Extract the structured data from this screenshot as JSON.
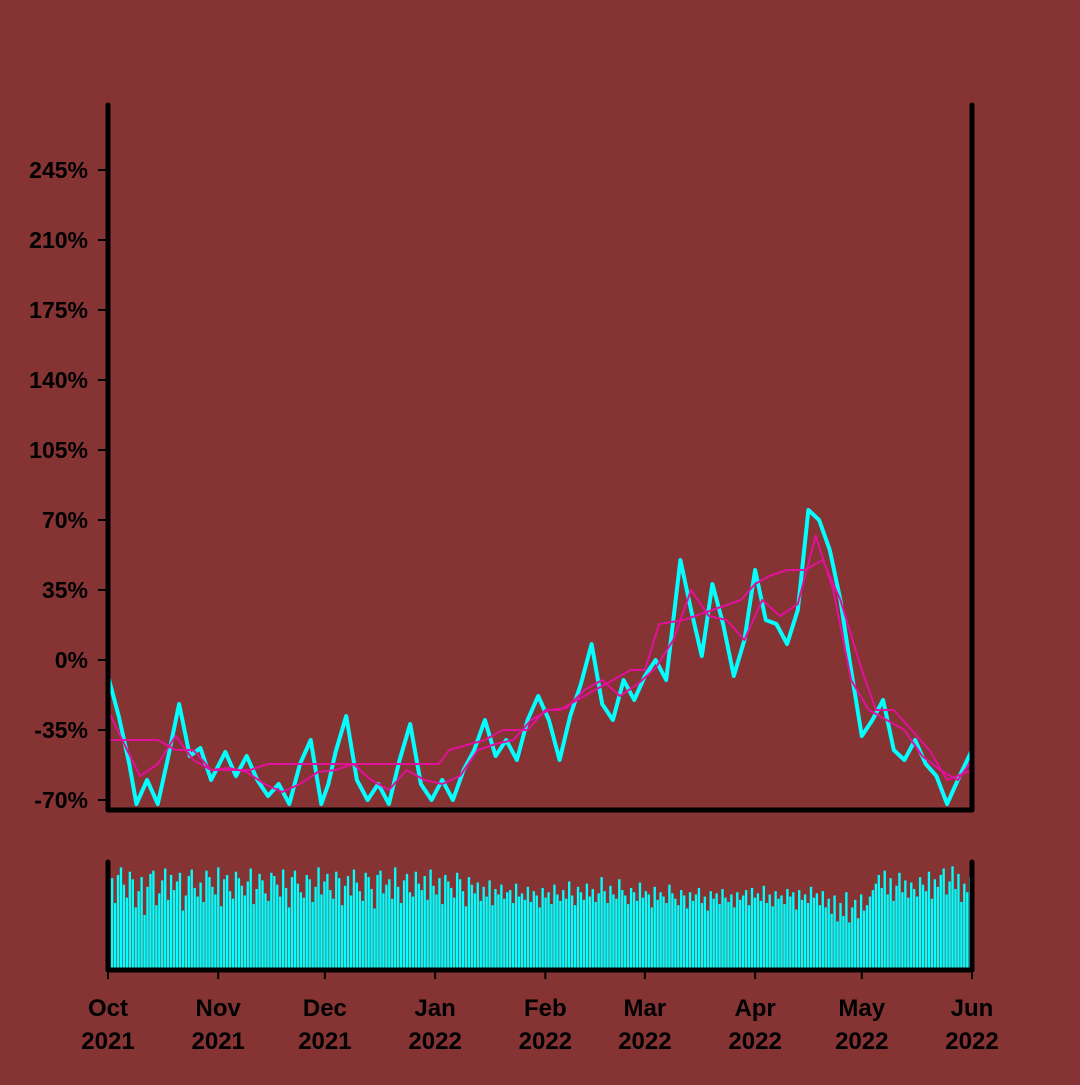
{
  "colors": {
    "background": "#853333",
    "price_line": "#00ffff",
    "moving_average": "#e0119d",
    "volume_bars": "#00ffff",
    "axis": "#000000"
  },
  "chart_data": [
    {
      "type": "line",
      "title": "",
      "xlabel": "",
      "ylabel": "",
      "x_range": [
        "2021-10-01",
        "2022-06-01"
      ],
      "ylim": [
        -70,
        280
      ],
      "y_ticks": [
        -70,
        -35,
        0,
        35,
        70,
        105,
        140,
        175,
        210,
        245
      ],
      "y_tick_labels": [
        "-70%",
        "-35%",
        "0%",
        "35%",
        "70%",
        "105%",
        "140%",
        "175%",
        "210%",
        "245%"
      ],
      "x_ticks": [
        "2021-10-01",
        "2021-11-01",
        "2021-12-01",
        "2022-01-01",
        "2022-02-01",
        "2022-03-01",
        "2022-04-01",
        "2022-05-01",
        "2022-06-01"
      ],
      "x_tick_labels": [
        {
          "month": "Oct",
          "year": "2021"
        },
        {
          "month": "Nov",
          "year": "2021"
        },
        {
          "month": "Dec",
          "year": "2021"
        },
        {
          "month": "Jan",
          "year": "2022"
        },
        {
          "month": "Feb",
          "year": "2022"
        },
        {
          "month": "Mar",
          "year": "2022"
        },
        {
          "month": "Apr",
          "year": "2022"
        },
        {
          "month": "May",
          "year": "2022"
        },
        {
          "month": "Jun",
          "year": "2022"
        }
      ],
      "grid": false,
      "series": [
        {
          "key": "price",
          "color": "#00ffff",
          "points": [
            [
              "2021-10-01",
              -8
            ],
            [
              "2021-10-04",
              -28
            ],
            [
              "2021-10-07",
              -52
            ],
            [
              "2021-10-09",
              -72
            ],
            [
              "2021-10-12",
              -60
            ],
            [
              "2021-10-15",
              -72
            ],
            [
              "2021-10-18",
              -48
            ],
            [
              "2021-10-21",
              -22
            ],
            [
              "2021-10-24",
              -48
            ],
            [
              "2021-10-27",
              -44
            ],
            [
              "2021-10-30",
              -60
            ],
            [
              "2021-11-03",
              -46
            ],
            [
              "2021-11-06",
              -58
            ],
            [
              "2021-11-09",
              -48
            ],
            [
              "2021-11-12",
              -60
            ],
            [
              "2021-11-15",
              -68
            ],
            [
              "2021-11-18",
              -62
            ],
            [
              "2021-11-21",
              -72
            ],
            [
              "2021-11-24",
              -52
            ],
            [
              "2021-11-27",
              -40
            ],
            [
              "2021-11-30",
              -72
            ],
            [
              "2021-12-02",
              -62
            ],
            [
              "2021-12-04",
              -46
            ],
            [
              "2021-12-07",
              -28
            ],
            [
              "2021-12-10",
              -60
            ],
            [
              "2021-12-13",
              -70
            ],
            [
              "2021-12-16",
              -62
            ],
            [
              "2021-12-19",
              -72
            ],
            [
              "2021-12-22",
              -50
            ],
            [
              "2021-12-25",
              -32
            ],
            [
              "2021-12-28",
              -62
            ],
            [
              "2021-12-31",
              -70
            ],
            [
              "2022-01-03",
              -60
            ],
            [
              "2022-01-06",
              -70
            ],
            [
              "2022-01-09",
              -55
            ],
            [
              "2022-01-12",
              -45
            ],
            [
              "2022-01-15",
              -30
            ],
            [
              "2022-01-18",
              -48
            ],
            [
              "2022-01-21",
              -40
            ],
            [
              "2022-01-24",
              -50
            ],
            [
              "2022-01-27",
              -30
            ],
            [
              "2022-01-30",
              -18
            ],
            [
              "2022-02-02",
              -30
            ],
            [
              "2022-02-05",
              -50
            ],
            [
              "2022-02-08",
              -28
            ],
            [
              "2022-02-11",
              -12
            ],
            [
              "2022-02-14",
              8
            ],
            [
              "2022-02-17",
              -22
            ],
            [
              "2022-02-20",
              -30
            ],
            [
              "2022-02-23",
              -10
            ],
            [
              "2022-02-26",
              -20
            ],
            [
              "2022-03-01",
              -8
            ],
            [
              "2022-03-04",
              0
            ],
            [
              "2022-03-07",
              -10
            ],
            [
              "2022-03-09",
              20
            ],
            [
              "2022-03-11",
              50
            ],
            [
              "2022-03-14",
              25
            ],
            [
              "2022-03-17",
              2
            ],
            [
              "2022-03-20",
              38
            ],
            [
              "2022-03-23",
              18
            ],
            [
              "2022-03-26",
              -8
            ],
            [
              "2022-03-29",
              10
            ],
            [
              "2022-04-01",
              45
            ],
            [
              "2022-04-04",
              20
            ],
            [
              "2022-04-07",
              18
            ],
            [
              "2022-04-10",
              8
            ],
            [
              "2022-04-13",
              25
            ],
            [
              "2022-04-16",
              75
            ],
            [
              "2022-04-19",
              70
            ],
            [
              "2022-04-22",
              55
            ],
            [
              "2022-04-25",
              30
            ],
            [
              "2022-04-28",
              -5
            ],
            [
              "2022-05-01",
              -38
            ],
            [
              "2022-05-04",
              -30
            ],
            [
              "2022-05-07",
              -20
            ],
            [
              "2022-05-10",
              -45
            ],
            [
              "2022-05-13",
              -50
            ],
            [
              "2022-05-16",
              -40
            ],
            [
              "2022-05-19",
              -52
            ],
            [
              "2022-05-22",
              -58
            ],
            [
              "2022-05-25",
              -72
            ],
            [
              "2022-05-28",
              -60
            ],
            [
              "2022-06-01",
              -45
            ]
          ]
        },
        {
          "key": "ma_fast",
          "color": "#e0119d",
          "points": [
            [
              "2021-10-01",
              -25
            ],
            [
              "2021-10-05",
              -40
            ],
            [
              "2021-10-10",
              -58
            ],
            [
              "2021-10-15",
              -52
            ],
            [
              "2021-10-20",
              -38
            ],
            [
              "2021-10-25",
              -50
            ],
            [
              "2021-10-30",
              -55
            ],
            [
              "2021-11-04",
              -54
            ],
            [
              "2021-11-09",
              -56
            ],
            [
              "2021-11-14",
              -62
            ],
            [
              "2021-11-19",
              -66
            ],
            [
              "2021-11-24",
              -62
            ],
            [
              "2021-11-29",
              -56
            ],
            [
              "2021-12-04",
              -55
            ],
            [
              "2021-12-09",
              -52
            ],
            [
              "2021-12-14",
              -60
            ],
            [
              "2021-12-19",
              -65
            ],
            [
              "2021-12-24",
              -55
            ],
            [
              "2021-12-29",
              -60
            ],
            [
              "2022-01-03",
              -62
            ],
            [
              "2022-01-08",
              -58
            ],
            [
              "2022-01-13",
              -45
            ],
            [
              "2022-01-18",
              -42
            ],
            [
              "2022-01-23",
              -40
            ],
            [
              "2022-01-28",
              -30
            ],
            [
              "2022-02-02",
              -25
            ],
            [
              "2022-02-07",
              -24
            ],
            [
              "2022-02-12",
              -15
            ],
            [
              "2022-02-17",
              -10
            ],
            [
              "2022-02-22",
              -18
            ],
            [
              "2022-02-27",
              -12
            ],
            [
              "2022-03-04",
              -4
            ],
            [
              "2022-03-09",
              10
            ],
            [
              "2022-03-14",
              35
            ],
            [
              "2022-03-19",
              22
            ],
            [
              "2022-03-24",
              20
            ],
            [
              "2022-03-29",
              10
            ],
            [
              "2022-04-03",
              30
            ],
            [
              "2022-04-08",
              22
            ],
            [
              "2022-04-13",
              28
            ],
            [
              "2022-04-18",
              62
            ],
            [
              "2022-04-23",
              35
            ],
            [
              "2022-04-28",
              -10
            ],
            [
              "2022-05-03",
              -25
            ],
            [
              "2022-05-08",
              -30
            ],
            [
              "2022-05-13",
              -35
            ],
            [
              "2022-05-18",
              -48
            ],
            [
              "2022-05-23",
              -55
            ],
            [
              "2022-05-28",
              -60
            ],
            [
              "2022-06-01",
              -50
            ]
          ]
        },
        {
          "key": "ma_slow",
          "color": "#e0119d",
          "points": [
            [
              "2021-10-01",
              -40
            ],
            [
              "2021-10-15",
              -40
            ],
            [
              "2021-10-20",
              -45
            ],
            [
              "2021-10-25",
              -45
            ],
            [
              "2021-10-30",
              -55
            ],
            [
              "2021-11-10",
              -55
            ],
            [
              "2021-11-15",
              -52
            ],
            [
              "2021-12-05",
              -52
            ],
            [
              "2021-12-10",
              -52
            ],
            [
              "2021-12-20",
              -52
            ],
            [
              "2022-01-02",
              -52
            ],
            [
              "2022-01-05",
              -45
            ],
            [
              "2022-01-15",
              -40
            ],
            [
              "2022-01-20",
              -35
            ],
            [
              "2022-01-27",
              -35
            ],
            [
              "2022-02-01",
              -25
            ],
            [
              "2022-02-05",
              -25
            ],
            [
              "2022-02-10",
              -20
            ],
            [
              "2022-02-15",
              -15
            ],
            [
              "2022-02-20",
              -10
            ],
            [
              "2022-02-25",
              -5
            ],
            [
              "2022-03-01",
              -5
            ],
            [
              "2022-03-05",
              18
            ],
            [
              "2022-03-12",
              20
            ],
            [
              "2022-03-20",
              25
            ],
            [
              "2022-03-28",
              30
            ],
            [
              "2022-04-01",
              38
            ],
            [
              "2022-04-05",
              42
            ],
            [
              "2022-04-10",
              45
            ],
            [
              "2022-04-15",
              45
            ],
            [
              "2022-04-20",
              50
            ],
            [
              "2022-04-25",
              30
            ],
            [
              "2022-05-01",
              -5
            ],
            [
              "2022-05-05",
              -25
            ],
            [
              "2022-05-10",
              -25
            ],
            [
              "2022-05-15",
              -35
            ],
            [
              "2022-05-20",
              -45
            ],
            [
              "2022-05-25",
              -60
            ],
            [
              "2022-06-01",
              -55
            ]
          ]
        }
      ]
    },
    {
      "type": "bar",
      "title": "",
      "xlabel": "",
      "ylabel": "",
      "x_range": [
        "2021-10-01",
        "2022-06-01"
      ],
      "ylim": [
        0,
        1
      ],
      "grid": false,
      "values_note_free": true,
      "values": [
        0.72,
        0.85,
        0.62,
        0.88,
        0.95,
        0.79,
        0.67,
        0.91,
        0.84,
        0.58,
        0.73,
        0.86,
        0.51,
        0.77,
        0.89,
        0.92,
        0.6,
        0.71,
        0.83,
        0.94,
        0.65,
        0.88,
        0.74,
        0.82,
        0.9,
        0.55,
        0.69,
        0.87,
        0.93,
        0.76,
        0.68,
        0.81,
        0.63,
        0.92,
        0.86,
        0.77,
        0.7,
        0.95,
        0.59,
        0.84,
        0.88,
        0.73,
        0.66,
        0.91,
        0.85,
        0.78,
        0.69,
        0.82,
        0.94,
        0.61,
        0.75,
        0.89,
        0.83,
        0.71,
        0.64,
        0.9,
        0.87,
        0.79,
        0.68,
        0.93,
        0.76,
        0.58,
        0.86,
        0.92,
        0.8,
        0.72,
        0.67,
        0.88,
        0.84,
        0.63,
        0.77,
        0.95,
        0.7,
        0.82,
        0.89,
        0.74,
        0.66,
        0.91,
        0.85,
        0.6,
        0.78,
        0.87,
        0.69,
        0.93,
        0.81,
        0.73,
        0.64,
        0.9,
        0.86,
        0.75,
        0.57,
        0.88,
        0.92,
        0.71,
        0.79,
        0.84,
        0.66,
        0.95,
        0.77,
        0.62,
        0.83,
        0.89,
        0.72,
        0.68,
        0.91,
        0.8,
        0.74,
        0.87,
        0.65,
        0.93,
        0.78,
        0.7,
        0.85,
        0.61,
        0.88,
        0.82,
        0.76,
        0.67,
        0.9,
        0.84,
        0.73,
        0.59,
        0.86,
        0.79,
        0.71,
        0.81,
        0.64,
        0.77,
        0.68,
        0.83,
        0.6,
        0.75,
        0.7,
        0.79,
        0.66,
        0.72,
        0.74,
        0.62,
        0.8,
        0.68,
        0.71,
        0.65,
        0.77,
        0.63,
        0.73,
        0.69,
        0.58,
        0.76,
        0.67,
        0.72,
        0.61,
        0.79,
        0.7,
        0.64,
        0.74,
        0.66,
        0.82,
        0.69,
        0.6,
        0.77,
        0.72,
        0.65,
        0.8,
        0.68,
        0.75,
        0.63,
        0.71,
        0.86,
        0.73,
        0.62,
        0.78,
        0.7,
        0.66,
        0.84,
        0.74,
        0.69,
        0.61,
        0.76,
        0.72,
        0.64,
        0.81,
        0.67,
        0.73,
        0.7,
        0.58,
        0.77,
        0.65,
        0.72,
        0.68,
        0.62,
        0.79,
        0.71,
        0.66,
        0.6,
        0.74,
        0.69,
        0.57,
        0.72,
        0.64,
        0.7,
        0.76,
        0.62,
        0.68,
        0.55,
        0.73,
        0.66,
        0.71,
        0.61,
        0.75,
        0.67,
        0.63,
        0.7,
        0.58,
        0.72,
        0.65,
        0.69,
        0.74,
        0.6,
        0.76,
        0.67,
        0.71,
        0.64,
        0.78,
        0.62,
        0.7,
        0.59,
        0.73,
        0.66,
        0.69,
        0.61,
        0.75,
        0.68,
        0.72,
        0.56,
        0.74,
        0.65,
        0.7,
        0.62,
        0.77,
        0.67,
        0.71,
        0.6,
        0.73,
        0.58,
        0.66,
        0.52,
        0.69,
        0.45,
        0.62,
        0.5,
        0.72,
        0.44,
        0.58,
        0.65,
        0.48,
        0.7,
        0.55,
        0.6,
        0.68,
        0.74,
        0.8,
        0.88,
        0.76,
        0.92,
        0.7,
        0.85,
        0.64,
        0.78,
        0.9,
        0.72,
        0.83,
        0.67,
        0.81,
        0.75,
        0.68,
        0.86,
        0.79,
        0.73,
        0.91,
        0.66,
        0.84,
        0.77,
        0.88,
        0.94,
        0.7,
        0.82,
        0.96,
        0.75,
        0.89,
        0.63,
        0.8,
        0.72,
        0.86
      ],
      "series": []
    }
  ]
}
